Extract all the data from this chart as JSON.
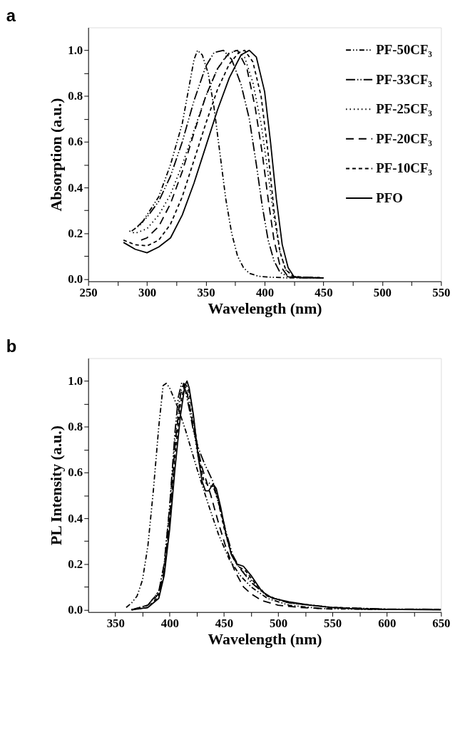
{
  "chart_data": [
    {
      "type": "line",
      "title": "a",
      "xlabel": "Wavelength (nm)",
      "ylabel": "Absorption (a.u.)",
      "xlim": [
        250,
        550
      ],
      "ylim": [
        -0.01,
        1.1
      ],
      "xticks": [
        250,
        {
          "value": 275,
          "label": null
        },
        300,
        {
          "value": 325,
          "label": null
        },
        350,
        {
          "value": 375,
          "label": null
        },
        400,
        {
          "value": 425,
          "label": null
        },
        450,
        {
          "value": 475,
          "label": null
        },
        500,
        {
          "value": 525,
          "label": null
        },
        550
      ],
      "yticks": [
        {
          "value": 0,
          "label": "0.0"
        },
        {
          "value": 0.1,
          "label": null
        },
        0.2,
        {
          "value": 0.3,
          "label": null
        },
        0.4,
        {
          "value": 0.5,
          "label": null
        },
        0.6,
        {
          "value": 0.7,
          "label": null
        },
        0.8,
        {
          "value": 0.9,
          "label": null
        },
        {
          "value": 1,
          "label": "1.0"
        }
      ],
      "grid": false,
      "legend": "top right",
      "series": [
        {
          "name": "PF-50CF₃",
          "color": "#000000",
          "line_style": "dashdotdot",
          "x": [
            287,
            295,
            300,
            310,
            320,
            330,
            335,
            340,
            343,
            347,
            352,
            357,
            362,
            367,
            372,
            377,
            382,
            387,
            395,
            405,
            420,
            450
          ],
          "values": [
            0.21,
            0.24,
            0.28,
            0.36,
            0.5,
            0.68,
            0.82,
            0.96,
            1.0,
            0.98,
            0.9,
            0.75,
            0.55,
            0.35,
            0.2,
            0.1,
            0.05,
            0.025,
            0.012,
            0.008,
            0.005,
            0.005
          ]
        },
        {
          "name": "PF-33CF₃",
          "color": "#000000",
          "line_style": "longdashdotdot",
          "x": [
            292,
            300,
            310,
            320,
            330,
            340,
            350,
            357,
            365,
            372,
            380,
            387,
            393,
            398,
            403,
            408,
            413,
            420,
            450
          ],
          "values": [
            0.23,
            0.27,
            0.34,
            0.45,
            0.6,
            0.78,
            0.93,
            0.99,
            1.0,
            0.96,
            0.85,
            0.7,
            0.5,
            0.32,
            0.17,
            0.08,
            0.03,
            0.01,
            0.005
          ]
        },
        {
          "name": "PF-25CF₃",
          "color": "#000000",
          "line_style": "dotted",
          "x": [
            285,
            290,
            300,
            310,
            320,
            330,
            340,
            350,
            360,
            368,
            376,
            383,
            390,
            397,
            403,
            408,
            413,
            418,
            425,
            450
          ],
          "values": [
            0.21,
            0.2,
            0.22,
            0.28,
            0.37,
            0.5,
            0.65,
            0.8,
            0.92,
            0.98,
            1.0,
            0.97,
            0.86,
            0.68,
            0.46,
            0.27,
            0.12,
            0.04,
            0.01,
            0.005
          ]
        },
        {
          "name": "PF-20CF₃",
          "color": "#000000",
          "line_style": "longdashed",
          "x": [
            295,
            300,
            310,
            320,
            330,
            340,
            350,
            360,
            370,
            377,
            385,
            392,
            398,
            403,
            408,
            413,
            420,
            450
          ],
          "values": [
            0.17,
            0.18,
            0.23,
            0.33,
            0.47,
            0.64,
            0.8,
            0.92,
            0.99,
            1.0,
            0.92,
            0.75,
            0.55,
            0.35,
            0.17,
            0.06,
            0.01,
            0.005
          ]
        },
        {
          "name": "PF-10CF₃",
          "color": "#000000",
          "line_style": "dashed",
          "x": [
            280,
            290,
            300,
            310,
            320,
            330,
            340,
            350,
            360,
            370,
            378,
            383,
            390,
            397,
            403,
            408,
            413,
            418,
            425,
            450
          ],
          "values": [
            0.17,
            0.15,
            0.145,
            0.17,
            0.24,
            0.36,
            0.52,
            0.68,
            0.83,
            0.94,
            0.99,
            1.0,
            0.95,
            0.8,
            0.55,
            0.3,
            0.12,
            0.04,
            0.01,
            0.005
          ]
        },
        {
          "name": "PFO",
          "color": "#000000",
          "line_style": "solid",
          "x": [
            280,
            290,
            300,
            310,
            320,
            330,
            340,
            350,
            360,
            370,
            380,
            387,
            393,
            400,
            405,
            410,
            415,
            420,
            425,
            430,
            450
          ],
          "values": [
            0.16,
            0.13,
            0.115,
            0.14,
            0.18,
            0.28,
            0.42,
            0.58,
            0.74,
            0.88,
            0.98,
            1.0,
            0.97,
            0.82,
            0.6,
            0.35,
            0.15,
            0.05,
            0.01,
            0.005,
            0.005
          ]
        }
      ]
    },
    {
      "type": "line",
      "title": "b",
      "xlabel": "Wavelength (nm)",
      "ylabel": "PL Intensity (a.u.)",
      "xlim": [
        325,
        650
      ],
      "ylim": [
        -0.01,
        1.1
      ],
      "xticks": [
        350,
        {
          "value": 375,
          "label": null
        },
        400,
        {
          "value": 425,
          "label": null
        },
        450,
        {
          "value": 475,
          "label": null
        },
        500,
        {
          "value": 525,
          "label": null
        },
        550,
        {
          "value": 575,
          "label": null
        },
        600,
        {
          "value": 625,
          "label": null
        },
        650
      ],
      "yticks": [
        {
          "value": 0,
          "label": "0.0"
        },
        {
          "value": 0.1,
          "label": null
        },
        0.2,
        {
          "value": 0.3,
          "label": null
        },
        0.4,
        {
          "value": 0.5,
          "label": null
        },
        0.6,
        {
          "value": 0.7,
          "label": null
        },
        0.8,
        {
          "value": 0.9,
          "label": null
        },
        {
          "value": 1,
          "label": "1.0"
        }
      ],
      "grid": false,
      "legend": "top right",
      "series": [
        {
          "name": "PF-50CF₃",
          "color": "#000000",
          "line_style": "dashdotdot",
          "x": [
            360,
            365,
            370,
            375,
            380,
            385,
            390,
            394,
            397,
            400,
            408,
            415,
            425,
            435,
            445,
            455,
            465,
            475,
            490,
            510,
            540,
            580,
            650
          ],
          "values": [
            0.01,
            0.03,
            0.06,
            0.13,
            0.28,
            0.52,
            0.8,
            0.98,
            0.99,
            0.97,
            0.88,
            0.78,
            0.62,
            0.47,
            0.33,
            0.22,
            0.15,
            0.1,
            0.05,
            0.02,
            0.005,
            0.002,
            0.002
          ]
        },
        {
          "name": "PF-33CF₃",
          "color": "#000000",
          "line_style": "longdashdotdot",
          "x": [
            365,
            380,
            390,
            395,
            400,
            405,
            408,
            411,
            414,
            418,
            422,
            427,
            432,
            437,
            440,
            445,
            452,
            458,
            465,
            475,
            490,
            510,
            550,
            600,
            650
          ],
          "values": [
            0.0,
            0.02,
            0.08,
            0.2,
            0.45,
            0.78,
            0.93,
            0.99,
            0.97,
            0.88,
            0.78,
            0.7,
            0.64,
            0.59,
            0.56,
            0.47,
            0.34,
            0.24,
            0.18,
            0.12,
            0.06,
            0.03,
            0.01,
            0.003,
            0.002
          ]
        },
        {
          "name": "PF-25CF₃",
          "color": "#000000",
          "line_style": "dotted",
          "x": [
            365,
            380,
            390,
            395,
            400,
            405,
            410,
            413,
            416,
            420,
            425,
            430,
            435,
            440,
            445,
            452,
            458,
            465,
            475,
            490,
            510,
            550,
            600
          ],
          "values": [
            0.0,
            0.02,
            0.08,
            0.2,
            0.45,
            0.75,
            0.95,
            0.99,
            0.96,
            0.86,
            0.7,
            0.58,
            0.56,
            0.54,
            0.47,
            0.33,
            0.23,
            0.18,
            0.13,
            0.06,
            0.03,
            0.01,
            0.002
          ]
        },
        {
          "name": "PF-20CF₃",
          "color": "#000000",
          "line_style": "longdashed",
          "x": [
            365,
            380,
            390,
            395,
            400,
            405,
            410,
            413,
            416,
            420,
            425,
            430,
            438,
            445,
            452,
            460,
            468,
            475,
            485,
            500,
            520,
            550
          ],
          "values": [
            0.0,
            0.02,
            0.07,
            0.17,
            0.4,
            0.72,
            0.94,
            0.99,
            0.95,
            0.85,
            0.72,
            0.62,
            0.5,
            0.38,
            0.27,
            0.17,
            0.1,
            0.07,
            0.04,
            0.02,
            0.01,
            0.003
          ]
        },
        {
          "name": "PF-10CF₃",
          "color": "#000000",
          "line_style": "dashed",
          "x": [
            365,
            380,
            390,
            395,
            400,
            405,
            410,
            414,
            417,
            421,
            426,
            431,
            436,
            440,
            444,
            450,
            457,
            463,
            470,
            478,
            490,
            510,
            550,
            600
          ],
          "values": [
            0.0,
            0.01,
            0.06,
            0.16,
            0.38,
            0.68,
            0.9,
            0.99,
            0.97,
            0.87,
            0.7,
            0.57,
            0.54,
            0.54,
            0.49,
            0.36,
            0.24,
            0.19,
            0.17,
            0.12,
            0.06,
            0.03,
            0.01,
            0.002
          ]
        },
        {
          "name": "PFO",
          "color": "#000000",
          "line_style": "solid",
          "x": [
            365,
            380,
            390,
            395,
            400,
            405,
            410,
            414,
            416,
            418,
            422,
            426,
            430,
            433,
            436,
            440,
            443,
            447,
            452,
            457,
            462,
            468,
            475,
            485,
            495,
            510,
            530,
            550,
            575,
            650
          ],
          "values": [
            0.0,
            0.01,
            0.05,
            0.15,
            0.35,
            0.62,
            0.85,
            0.98,
            1.0,
            0.97,
            0.85,
            0.68,
            0.56,
            0.52,
            0.52,
            0.55,
            0.53,
            0.45,
            0.33,
            0.24,
            0.2,
            0.19,
            0.15,
            0.08,
            0.05,
            0.035,
            0.02,
            0.01,
            0.003,
            0.0
          ]
        }
      ]
    }
  ]
}
